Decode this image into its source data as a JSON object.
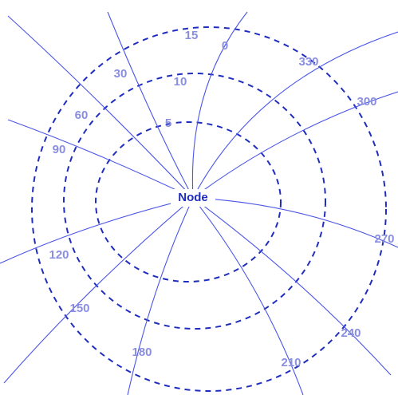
{
  "node": {
    "label": "Node"
  },
  "rings": [
    {
      "label": "5"
    },
    {
      "label": "10"
    },
    {
      "label": "15"
    }
  ],
  "spokes": [
    {
      "label": "0"
    },
    {
      "label": "30"
    },
    {
      "label": "60"
    },
    {
      "label": "90"
    },
    {
      "label": "120"
    },
    {
      "label": "150"
    },
    {
      "label": "180"
    },
    {
      "label": "210"
    },
    {
      "label": "240"
    },
    {
      "label": "270"
    },
    {
      "label": "300"
    },
    {
      "label": "330"
    }
  ]
}
